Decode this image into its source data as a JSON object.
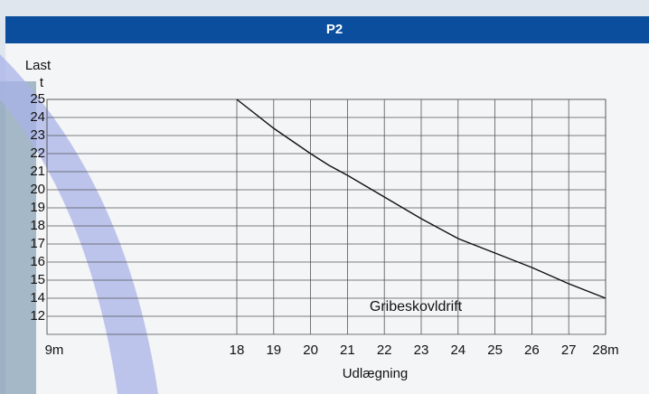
{
  "header": {
    "title": "P2"
  },
  "chart_data": {
    "type": "line",
    "ylabel": "Last",
    "yunit": "t",
    "xlabel": "Udlægning",
    "x": [
      18,
      19,
      20,
      20.5,
      21,
      22,
      23,
      24,
      25,
      26,
      27,
      28
    ],
    "series": [
      {
        "name": "Gribeskovldrift",
        "color": "#111111",
        "values": [
          25,
          23.4,
          22.0,
          21.35,
          20.8,
          19.6,
          18.4,
          17.3,
          16.5,
          15.7,
          14.8,
          14.0
        ]
      }
    ],
    "xlim": [
      9,
      28
    ],
    "xticks": [
      {
        "value": 9,
        "label": "9m"
      },
      18,
      19,
      20,
      21,
      22,
      23,
      24,
      25,
      26,
      27,
      {
        "value": 28,
        "label": "28m"
      }
    ],
    "ylim": [
      12,
      25
    ],
    "yticks": [
      12,
      14,
      15,
      16,
      17,
      18,
      19,
      20,
      21,
      22,
      23,
      24,
      25
    ],
    "grid": true
  }
}
